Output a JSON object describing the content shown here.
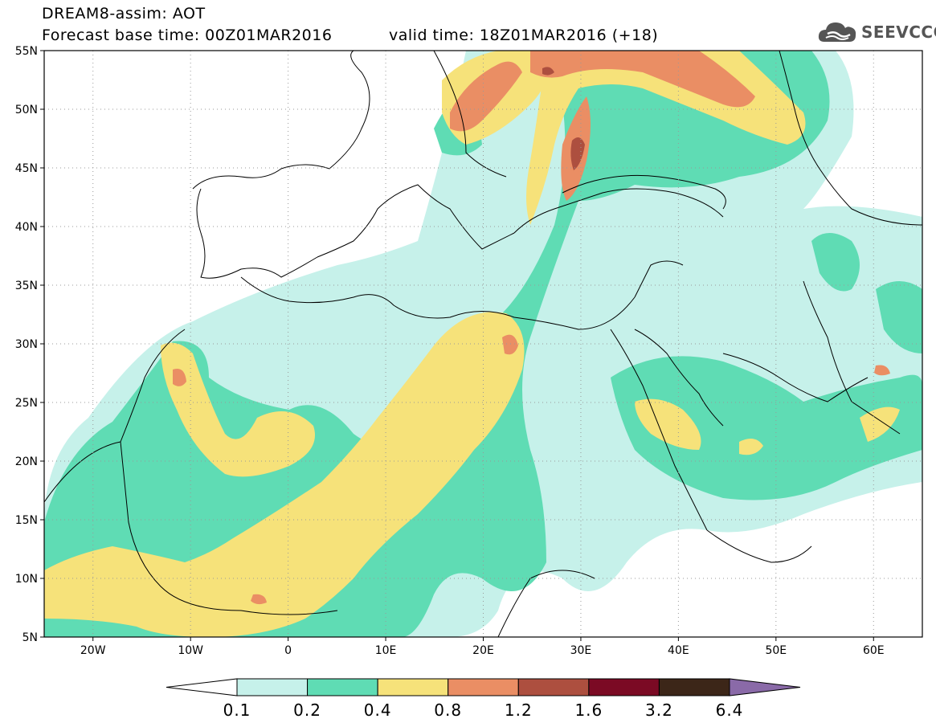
{
  "title": {
    "line1": "DREAM8-assim: AOT",
    "line2": "Forecast base time: 00Z01MAR2016",
    "line3": "valid time: 18Z01MAR2016 (+18)"
  },
  "logo": {
    "icon": "cloud-icon",
    "text": "SEEVCCC"
  },
  "axes": {
    "lat_labels": [
      "55N",
      "50N",
      "45N",
      "40N",
      "35N",
      "30N",
      "25N",
      "20N",
      "15N",
      "10N",
      "5N"
    ],
    "lat_values": [
      55,
      50,
      45,
      40,
      35,
      30,
      25,
      20,
      15,
      10,
      5
    ],
    "lon_labels": [
      "20W",
      "10W",
      "0",
      "10E",
      "20E",
      "30E",
      "40E",
      "50E",
      "60E"
    ],
    "lon_values": [
      -20,
      -10,
      0,
      10,
      20,
      30,
      40,
      50,
      60
    ],
    "lon_range": [
      -25,
      65
    ],
    "lat_range": [
      5,
      55
    ],
    "grid": "dotted"
  },
  "colorbar": {
    "labels": [
      "0.1",
      "0.2",
      "0.4",
      "0.8",
      "1.2",
      "1.6",
      "3.2",
      "6.4"
    ],
    "colors": [
      "#ffffff",
      "#c6f1ea",
      "#5fdcb4",
      "#f6e27a",
      "#ea8e64",
      "#ad4f3f",
      "#7b0a24",
      "#3c2618",
      "#8a6aa8"
    ]
  },
  "chart_data": {
    "type": "heatmap",
    "title": "DREAM8-assim: AOT",
    "variable": "AOT",
    "levels": [
      0.1,
      0.2,
      0.4,
      0.8,
      1.2,
      1.6,
      3.2,
      6.4
    ],
    "xlim": [
      -25,
      65
    ],
    "ylim": [
      5,
      55
    ],
    "base_time": "00Z01MAR2016",
    "valid_time": "18Z01MAR2016",
    "lead_hours": 18
  }
}
